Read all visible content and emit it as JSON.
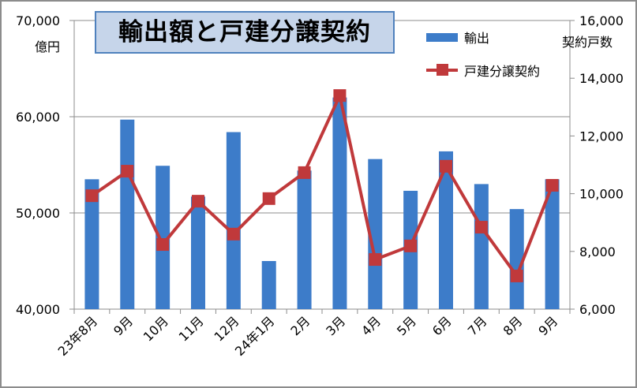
{
  "title": "輸出額と戸建分譲契約",
  "left_unit": "億円",
  "right_unit": "契約戸数",
  "chart_data": {
    "type": "bar+line",
    "title": "輸出額と戸建分譲契約",
    "categories": [
      "23年8月",
      "9月",
      "10月",
      "11月",
      "12月",
      "24年1月",
      "2月",
      "3月",
      "4月",
      "5月",
      "6月",
      "7月",
      "8月",
      "9月"
    ],
    "series": [
      {
        "name": "輸出",
        "type": "bar",
        "axis": "left",
        "color": "#3d7cc9",
        "values": [
          53500,
          59700,
          54900,
          51700,
          58400,
          45000,
          54400,
          62000,
          55600,
          52300,
          56400,
          53000,
          50400,
          53500
        ]
      },
      {
        "name": "戸建分譲契約",
        "type": "line",
        "axis": "right",
        "color": "#c0393b",
        "values": [
          9930,
          10780,
          8240,
          9740,
          8600,
          9830,
          10730,
          13400,
          7720,
          8190,
          10950,
          8840,
          7150,
          10290
        ]
      }
    ],
    "left_axis": {
      "label": "億円",
      "range": [
        40000,
        70000
      ],
      "ticks": [
        "40,000",
        "50,000",
        "60,000",
        "70,000"
      ],
      "tick_values": [
        40000,
        50000,
        60000,
        70000
      ]
    },
    "right_axis": {
      "label": "契約戸数",
      "range": [
        6000,
        16000
      ],
      "ticks": [
        "6,000",
        "8,000",
        "10,000",
        "12,000",
        "14,000",
        "16,000"
      ],
      "tick_values": [
        6000,
        8000,
        10000,
        12000,
        14000,
        16000
      ]
    },
    "grid": true,
    "legend": "top-right"
  }
}
